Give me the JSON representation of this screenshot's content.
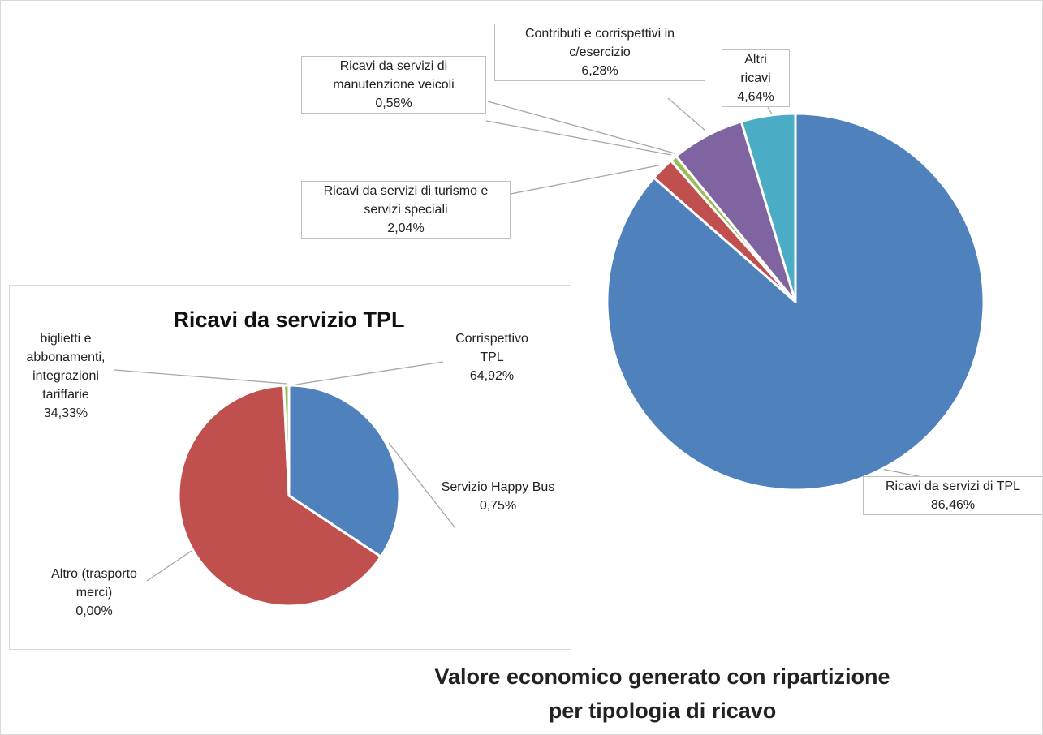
{
  "chart_data": [
    {
      "type": "pie",
      "title": "Valore economico generato con ripartizione per tipologia di ricavo",
      "categories": [
        "Ricavi da servizi di TPL",
        "Ricavi da servizi di turismo e servizi speciali",
        "Ricavi da servizi di manutenzione veicoli",
        "Contributi e corrispettivi in c/esercizio",
        "Altri ricavi"
      ],
      "values": [
        86.46,
        2.04,
        0.58,
        6.28,
        4.64
      ],
      "value_labels": [
        "86,46%",
        "2,04%",
        "0,58%",
        "6,28%",
        "4,64%"
      ],
      "colors": [
        "#4f81bd",
        "#c0504d",
        "#9bbb59",
        "#8064a2",
        "#4bacc6"
      ]
    },
    {
      "type": "pie",
      "title": "Ricavi da servizio TPL",
      "categories": [
        "biglietti e abbonamenti, integrazioni tariffarie",
        "Corrispettivo TPL",
        "Servizio Happy Bus",
        "Altro (trasporto merci)"
      ],
      "values": [
        34.33,
        64.92,
        0.75,
        0.0
      ],
      "value_labels": [
        "34,33%",
        "64,92%",
        "0,75%",
        "0,00%"
      ],
      "colors": [
        "#4f81bd",
        "#c0504d",
        "#9bbb59",
        "#8064a2"
      ]
    }
  ]
}
